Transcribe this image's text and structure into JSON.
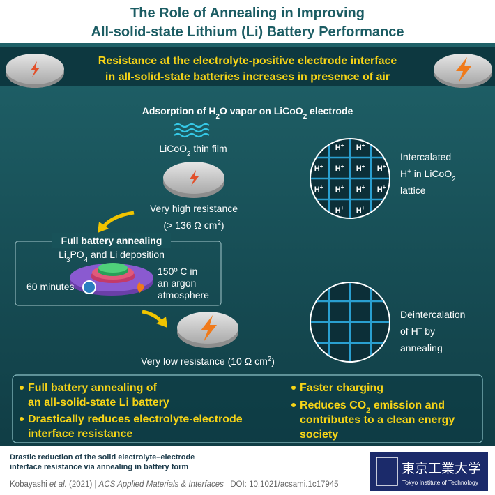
{
  "header": {
    "title": [
      "The Role of Annealing in Improving",
      "All-solid-state Lithium (Li) Battery Performance"
    ]
  },
  "banner": {
    "lines": [
      "Resistance at the electrolyte-positive electrode interface",
      "in all-solid-state batteries increases in presence of air"
    ]
  },
  "adsorption": {
    "heading": [
      "Adsorption of H",
      "2",
      "O vapor on LiCoO",
      "2",
      " electrode"
    ],
    "film_label": [
      "LiCoO",
      "2",
      " thin film"
    ],
    "high_resistance": [
      "Very high resistance",
      [
        "(> 136 Ω cm",
        "2",
        ")"
      ]
    ]
  },
  "annealing": {
    "title": "Full battery annealing",
    "deposition": [
      "Li",
      "3",
      "PO",
      "4",
      " and Li deposition"
    ],
    "time": "60 minutes",
    "conditions": [
      "150º C in",
      "an argon",
      "atmosphere"
    ]
  },
  "low_resistance": [
    "Very low resistance (10 Ω cm",
    "2",
    ")"
  ],
  "lattice_intercalated": {
    "ions": [
      [
        "H",
        "+"
      ],
      [
        "H",
        "+"
      ],
      [
        "H",
        "+"
      ],
      [
        "H",
        "+"
      ],
      [
        "H",
        "+"
      ],
      [
        "H",
        "+"
      ],
      [
        "H",
        "+"
      ],
      [
        "H",
        "+"
      ],
      [
        "H",
        "+"
      ],
      [
        "H",
        "+"
      ],
      [
        "H",
        "+"
      ],
      [
        "H",
        "+"
      ]
    ],
    "caption": [
      "Intercalated",
      [
        "H",
        "+",
        " in LiCoO",
        "2"
      ],
      "lattice"
    ]
  },
  "lattice_deintercalated": {
    "caption": [
      "Deintercalation",
      [
        "of H",
        "+",
        " by"
      ],
      "annealing"
    ]
  },
  "summary": {
    "left": [
      [
        "Full battery annealing of",
        "an all-solid-state Li battery"
      ],
      [
        "Drastically reduces electrolyte-electrode",
        "interface resistance"
      ]
    ],
    "right": [
      [
        "Faster charging"
      ],
      [
        [
          "Reduces CO",
          "2",
          " emission and"
        ],
        "contributes to a clean energy",
        "society"
      ]
    ]
  },
  "footer": {
    "headline": [
      "Drastic reduction of the solid electrolyte–electrode",
      "interface resistance via annealing in battery form"
    ],
    "citation": [
      "Kobayashi ",
      "et al.",
      " (2021) | ",
      "ACS Applied Materials & Interfaces",
      " | DOI: 10.1021/acsami.1c17945"
    ],
    "logo": [
      "東京工業大学",
      "Tokyo Institute of Technology"
    ]
  }
}
